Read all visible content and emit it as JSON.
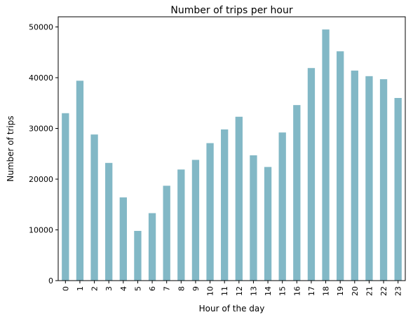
{
  "chart_data": {
    "type": "bar",
    "title": "Number of trips per hour",
    "xlabel": "Hour of the day",
    "ylabel": "Number of trips",
    "categories": [
      "0",
      "1",
      "2",
      "3",
      "4",
      "5",
      "6",
      "7",
      "8",
      "9",
      "10",
      "11",
      "12",
      "13",
      "14",
      "15",
      "16",
      "17",
      "18",
      "19",
      "20",
      "21",
      "22",
      "23"
    ],
    "values": [
      33000,
      39400,
      28800,
      23200,
      16400,
      9800,
      13300,
      18700,
      21900,
      23800,
      27100,
      29800,
      32300,
      24700,
      22400,
      29200,
      34600,
      41900,
      49500,
      45200,
      41400,
      40300,
      39700,
      36000
    ],
    "yticks": [
      0,
      10000,
      20000,
      30000,
      40000,
      50000
    ],
    "ylim": [
      0,
      52000
    ],
    "bar_color": "#82b8c6",
    "grid": false,
    "legend": false
  }
}
